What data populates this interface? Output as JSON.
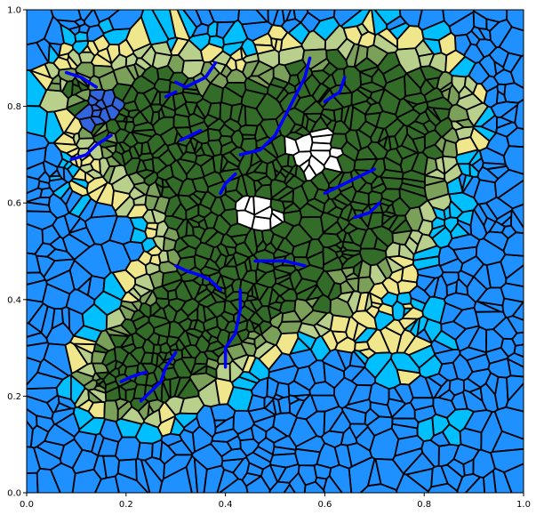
{
  "figure": {
    "background": "#ffffff",
    "x_ticks": [
      "0.0",
      "0.2",
      "0.4",
      "0.6",
      "0.8",
      "1.0"
    ],
    "y_ticks": [
      "0.0",
      "0.2",
      "0.4",
      "0.6",
      "0.8",
      "1.0"
    ]
  },
  "map": {
    "kind": "voronoi-terrain",
    "seed_count": 1400,
    "x_range": [
      0,
      1
    ],
    "y_range": [
      0,
      1
    ],
    "cell_border_color": "#000000",
    "river_color": "#0000ff",
    "palette": {
      "ocean": "#1e90ff",
      "shallow": "#00bfff",
      "beach": "#f0e68c",
      "grass": "#b8d08c",
      "forest": "#7aa05a",
      "dense-forest": "#336b28",
      "snow": "#ffffff",
      "lake": "#3366dd"
    }
  },
  "chart_data": {
    "type": "voronoi-map",
    "x_ticks": [
      0.0,
      0.2,
      0.4,
      0.6,
      0.8,
      1.0
    ],
    "y_ticks": [
      0.0,
      0.2,
      0.4,
      0.6,
      0.8,
      1.0
    ],
    "xlim": [
      0,
      1
    ],
    "ylim": [
      0,
      1
    ],
    "land_masses": [
      {
        "x": 0.22,
        "y": 0.78,
        "r": 0.17,
        "strength": 1.0
      },
      {
        "x": 0.36,
        "y": 0.7,
        "r": 0.13,
        "strength": 0.8
      },
      {
        "x": 0.55,
        "y": 0.68,
        "r": 0.2,
        "strength": 1.15
      },
      {
        "x": 0.68,
        "y": 0.78,
        "r": 0.18,
        "strength": 0.95
      },
      {
        "x": 0.82,
        "y": 0.8,
        "r": 0.1,
        "strength": 0.55
      },
      {
        "x": 0.42,
        "y": 0.5,
        "r": 0.12,
        "strength": 0.95
      },
      {
        "x": 0.35,
        "y": 0.37,
        "r": 0.13,
        "strength": 0.95
      },
      {
        "x": 0.27,
        "y": 0.27,
        "r": 0.12,
        "strength": 0.9
      },
      {
        "x": 0.18,
        "y": 0.24,
        "r": 0.1,
        "strength": 0.7
      },
      {
        "x": 0.55,
        "y": 0.44,
        "r": 0.14,
        "strength": 0.75
      },
      {
        "x": 0.7,
        "y": 0.58,
        "r": 0.12,
        "strength": 0.7
      },
      {
        "x": 0.75,
        "y": 0.3,
        "r": 0.1,
        "strength": 0.45
      },
      {
        "x": 0.85,
        "y": 0.12,
        "r": 0.07,
        "strength": 0.35
      },
      {
        "x": 0.08,
        "y": 0.85,
        "r": 0.06,
        "strength": 0.4
      }
    ],
    "lakes": [
      {
        "x": 0.155,
        "y": 0.8,
        "r": 0.035
      },
      {
        "x": 0.125,
        "y": 0.775,
        "r": 0.022
      }
    ],
    "peaks": [
      {
        "x": 0.58,
        "y": 0.7,
        "r": 0.065
      },
      {
        "x": 0.47,
        "y": 0.57,
        "r": 0.055
      }
    ],
    "rivers": [
      [
        [
          0.08,
          0.87
        ],
        [
          0.11,
          0.86
        ],
        [
          0.14,
          0.84
        ]
      ],
      [
        [
          0.17,
          0.74
        ],
        [
          0.14,
          0.72
        ],
        [
          0.12,
          0.7
        ],
        [
          0.09,
          0.69
        ]
      ],
      [
        [
          0.3,
          0.85
        ],
        [
          0.32,
          0.84
        ],
        [
          0.36,
          0.86
        ],
        [
          0.38,
          0.89
        ]
      ],
      [
        [
          0.28,
          0.82
        ],
        [
          0.3,
          0.83
        ]
      ],
      [
        [
          0.31,
          0.73
        ],
        [
          0.33,
          0.74
        ],
        [
          0.35,
          0.75
        ]
      ],
      [
        [
          0.57,
          0.9
        ],
        [
          0.56,
          0.86
        ],
        [
          0.54,
          0.82
        ],
        [
          0.52,
          0.78
        ],
        [
          0.5,
          0.74
        ],
        [
          0.47,
          0.71
        ],
        [
          0.43,
          0.7
        ]
      ],
      [
        [
          0.64,
          0.86
        ],
        [
          0.63,
          0.83
        ],
        [
          0.6,
          0.81
        ]
      ],
      [
        [
          0.7,
          0.67
        ],
        [
          0.66,
          0.65
        ],
        [
          0.62,
          0.63
        ],
        [
          0.6,
          0.62
        ]
      ],
      [
        [
          0.71,
          0.6
        ],
        [
          0.69,
          0.58
        ],
        [
          0.66,
          0.57
        ]
      ],
      [
        [
          0.42,
          0.66
        ],
        [
          0.4,
          0.64
        ],
        [
          0.39,
          0.62
        ]
      ],
      [
        [
          0.56,
          0.47
        ],
        [
          0.52,
          0.48
        ],
        [
          0.49,
          0.48
        ],
        [
          0.46,
          0.48
        ]
      ],
      [
        [
          0.3,
          0.47
        ],
        [
          0.32,
          0.46
        ],
        [
          0.35,
          0.45
        ],
        [
          0.37,
          0.44
        ],
        [
          0.39,
          0.42
        ]
      ],
      [
        [
          0.43,
          0.42
        ],
        [
          0.43,
          0.38
        ],
        [
          0.42,
          0.33
        ],
        [
          0.4,
          0.3
        ],
        [
          0.4,
          0.26
        ]
      ],
      [
        [
          0.3,
          0.29
        ],
        [
          0.28,
          0.26
        ],
        [
          0.27,
          0.23
        ],
        [
          0.25,
          0.21
        ],
        [
          0.23,
          0.19
        ]
      ],
      [
        [
          0.24,
          0.25
        ],
        [
          0.21,
          0.24
        ],
        [
          0.19,
          0.23
        ]
      ]
    ]
  }
}
